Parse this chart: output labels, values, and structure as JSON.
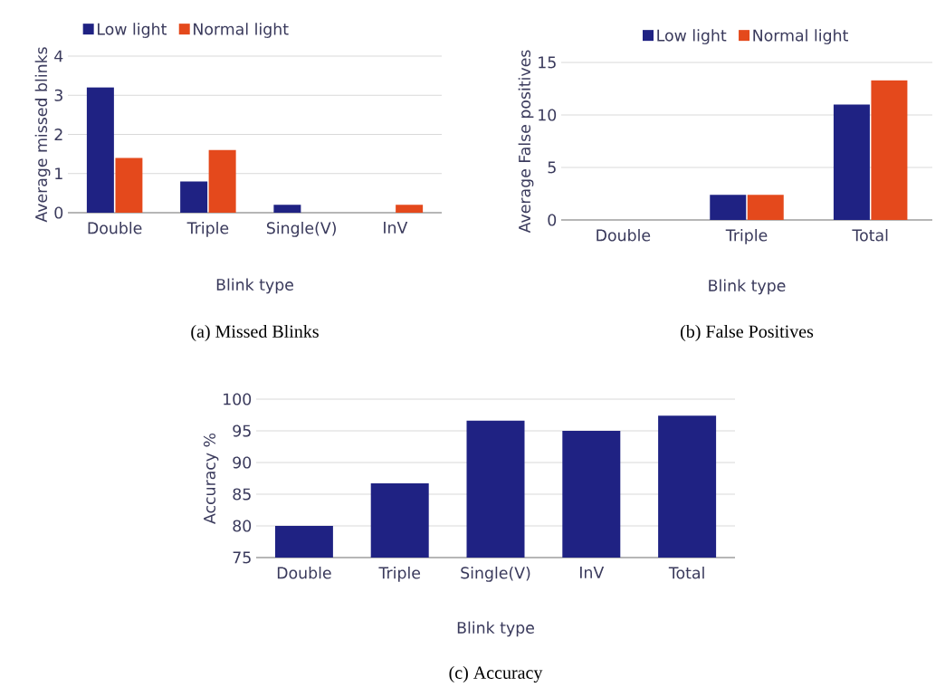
{
  "chart_data": [
    {
      "type": "bar",
      "categories": [
        "Double",
        "Triple",
        "Single(V)",
        "InV"
      ],
      "xlabel": "Blink type",
      "ylabel": "Average missed blinks",
      "series": [
        {
          "name": "Low light",
          "color": "#1f2283",
          "values": [
            3.2,
            0.8,
            0.2,
            0
          ]
        },
        {
          "name": "Normal light",
          "color": "#e4491c",
          "values": [
            1.4,
            1.6,
            0,
            0.2
          ]
        }
      ],
      "ylim": [
        0,
        4
      ],
      "yticks": [
        0,
        1,
        2,
        3,
        4
      ],
      "grid": "y",
      "legend": "top left",
      "annotations": [
        "(a) Missed Blinks"
      ]
    },
    {
      "type": "bar",
      "categories": [
        "Double",
        "Triple",
        "Total"
      ],
      "xlabel": "Blink type",
      "ylabel": "Average False positives",
      "series": [
        {
          "name": "Low light",
          "color": "#1f2283",
          "values": [
            0,
            2.4,
            11
          ]
        },
        {
          "name": "Normal light",
          "color": "#e4491c",
          "values": [
            0,
            2.4,
            13.3
          ]
        }
      ],
      "ylim": [
        0,
        15
      ],
      "yticks": [
        0,
        5,
        10,
        15
      ],
      "grid": "y",
      "legend": "top",
      "annotations": [
        "(b) False Positives"
      ]
    },
    {
      "type": "bar",
      "categories": [
        "Double",
        "Triple",
        "Single(V)",
        "InV",
        "Total"
      ],
      "xlabel": "Blink type",
      "ylabel": "Accuracy %",
      "values": [
        80,
        86.7,
        96.6,
        95,
        97.4
      ],
      "color": "#1f2283",
      "ylim": [
        75,
        100
      ],
      "yticks": [
        75,
        80,
        85,
        90,
        95,
        100
      ],
      "grid": "y",
      "annotations": [
        "(c) Accuracy"
      ]
    }
  ]
}
